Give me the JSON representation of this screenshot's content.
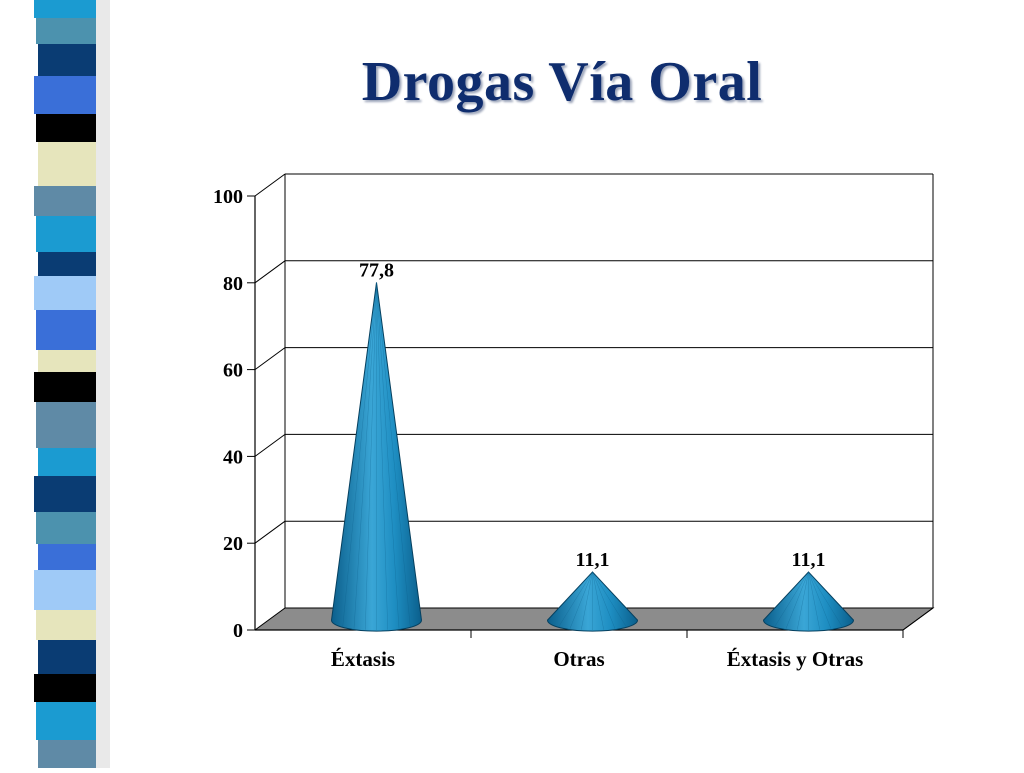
{
  "slide": {
    "title": "Drogas Vía Oral"
  },
  "colors": {
    "title": "#0f2d6e",
    "cone_light": "#5ab4dc",
    "cone_mid": "#1e8ec2",
    "cone_dark": "#0b5f8c",
    "floor": "#8c8c8c",
    "stripes": [
      "#1b9bd1",
      "#4c92ae",
      "#0a3c73",
      "#3a6fd8",
      "#000000",
      "#e6e5bc",
      "#5f8aa6",
      "#9fcaf7"
    ]
  },
  "chart_data": {
    "type": "bar",
    "bar_shape": "cone",
    "title": "",
    "xlabel": "",
    "ylabel": "",
    "categories": [
      "Éxtasis",
      "Otras",
      "Éxtasis y Otras"
    ],
    "values": [
      77.8,
      11.1,
      11.1
    ],
    "data_labels": [
      "77,8",
      "11,1",
      "11,1"
    ],
    "ylim": [
      0,
      100
    ],
    "yticks": [
      "0",
      "20",
      "40",
      "60",
      "80",
      "100"
    ],
    "ytick_values": [
      0,
      20,
      40,
      60,
      80,
      100
    ],
    "grid": true,
    "legend": "none"
  }
}
